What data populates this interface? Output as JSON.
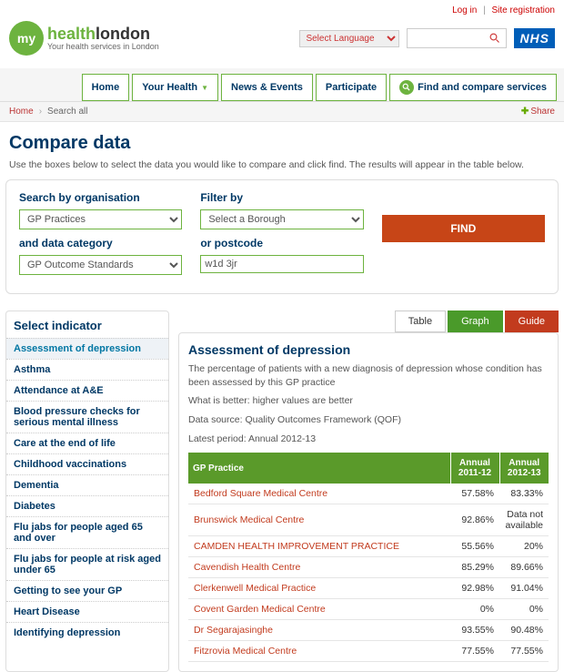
{
  "topLinks": {
    "login": "Log in",
    "register": "Site registration"
  },
  "logo": {
    "circle": "my",
    "brand1": "health",
    "brand2": "london",
    "tagline": "Your health services in London"
  },
  "langPlaceholder": "Select Language",
  "nhs": "NHS",
  "nav": [
    {
      "label": "Home"
    },
    {
      "label": "Your Health",
      "dropdown": true
    },
    {
      "label": "News & Events"
    },
    {
      "label": "Participate"
    },
    {
      "label": "Find and compare services",
      "find": true
    }
  ],
  "breadcrumb": {
    "home": "Home",
    "current": "Search all",
    "share": "Share"
  },
  "pageTitle": "Compare data",
  "pageDesc": "Use the boxes below to select the data you would like to compare and click find. The results will appear in the table below.",
  "searchPanel": {
    "orgLabel": "Search by organisation",
    "orgValue": "GP Practices",
    "catLabel": "and data category",
    "catValue": "GP Outcome Standards",
    "filterLabel": "Filter by",
    "filterValue": "Select a Borough",
    "postcodeLabel": "or postcode",
    "postcodeValue": "w1d 3jr",
    "findBtn": "FIND"
  },
  "sidebarTitle": "Select indicator",
  "indicators": [
    "Assessment of depression",
    "Asthma",
    "Attendance at A&E",
    "Blood pressure checks for serious mental illness",
    "Care at the end of life",
    "Childhood vaccinations",
    "Dementia",
    "Diabetes",
    "Flu jabs for people aged 65 and over",
    "Flu jabs for people at risk aged under 65",
    "Getting to see your GP",
    "Heart Disease",
    "Identifying depression"
  ],
  "tabs": {
    "table": "Table",
    "graph": "Graph",
    "guide": "Guide"
  },
  "detail": {
    "title": "Assessment of depression",
    "desc": "The percentage of patients with a new diagnosis of depression whose condition has been assessed by this GP practice",
    "better": "What is better: higher values are better",
    "source": "Data source: Quality Outcomes Framework (QOF)",
    "period": "Latest period: Annual 2012-13"
  },
  "tableHeaders": {
    "practice": "GP Practice",
    "y1": "Annual 2011-12",
    "y2": "Annual 2012-13"
  },
  "rows": [
    {
      "name": "Bedford Square Medical Centre",
      "y1": "57.58%",
      "y2": "83.33%"
    },
    {
      "name": "Brunswick Medical Centre",
      "y1": "92.86%",
      "y2": "Data not available"
    },
    {
      "name": "CAMDEN HEALTH IMPROVEMENT PRACTICE",
      "y1": "55.56%",
      "y2": "20%"
    },
    {
      "name": "Cavendish Health Centre",
      "y1": "85.29%",
      "y2": "89.66%"
    },
    {
      "name": "Clerkenwell Medical Practice",
      "y1": "92.98%",
      "y2": "91.04%"
    },
    {
      "name": "Covent Garden Medical Centre",
      "y1": "0%",
      "y2": "0%"
    },
    {
      "name": "Dr Segarajasinghe",
      "y1": "93.55%",
      "y2": "90.48%"
    },
    {
      "name": "Fitzrovia Medical Centre",
      "y1": "77.55%",
      "y2": "77.55%"
    }
  ]
}
